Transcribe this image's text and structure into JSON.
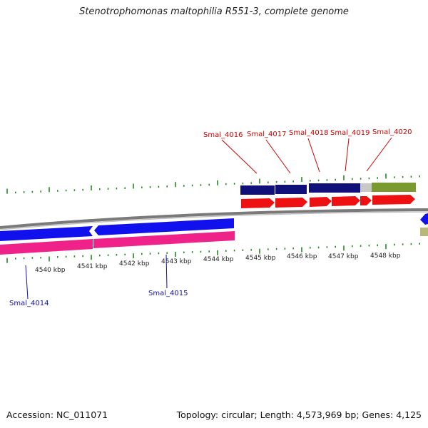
{
  "title": "Stenotrophomonas maltophilia R551-3, complete genome",
  "footer": {
    "accession": "Accession: NC_011071",
    "summary": "Topology: circular; Length: 4,573,969 bp; Genes: 4,125"
  },
  "colors": {
    "forward_cds": "#ee1111",
    "reverse_cds": "#1111ee",
    "reverse_rna": "#ee2288",
    "forward_label": "#cc0000",
    "reverse_label": "#1111aa",
    "cog_navy": "#10107a",
    "cog_olive": "#7a9a30",
    "cog_grey": "#c8c8c8",
    "backbone": "#888888",
    "tick": "#228b22"
  },
  "axis": {
    "unit": "kbp",
    "ticks": [
      "4540 kbp",
      "4541 kbp",
      "4542 kbp",
      "4543 kbp",
      "4544 kbp",
      "4545 kbp",
      "4546 kbp",
      "4547 kbp",
      "4548 kbp"
    ]
  },
  "genes_forward": [
    "Smal_4016",
    "Smal_4017",
    "Smal_4018",
    "Smal_4019",
    "Smal_4020"
  ],
  "genes_reverse": [
    "Smal_4014",
    "Smal_4015"
  ]
}
